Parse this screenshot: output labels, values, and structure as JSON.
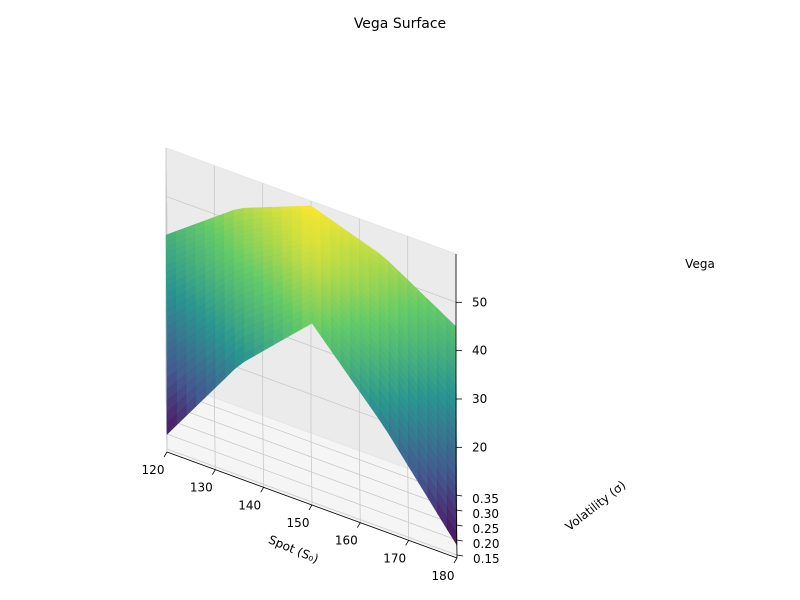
{
  "chart_data": {
    "type": "surface",
    "title": "Vega Surface",
    "xlabel": "Spot (S₀)",
    "ylabel": "Volatility (σ)",
    "zlabel": "Vega",
    "x_ticks": [
      "120",
      "130",
      "140",
      "150",
      "160",
      "170",
      "180"
    ],
    "y_ticks": [
      "0.15",
      "0.20",
      "0.25",
      "0.30",
      "0.35"
    ],
    "z_ticks": [
      "20",
      "30",
      "40",
      "50"
    ],
    "xlim": [
      120,
      180
    ],
    "ylim": [
      0.14,
      0.38
    ],
    "zlim": [
      12,
      60
    ],
    "colormap": "viridis",
    "surface_samples": {
      "spot": [
        120,
        135,
        150,
        165,
        180
      ],
      "volatility": [
        0.15,
        0.2,
        0.25,
        0.3,
        0.35,
        0.38
      ],
      "vega_by_volatility": [
        [
          15,
          35,
          49,
          33,
          14
        ],
        [
          24,
          41,
          52,
          41,
          23
        ],
        [
          30,
          45,
          55,
          46,
          30
        ],
        [
          36,
          49,
          57,
          50,
          37
        ],
        [
          40,
          51,
          58,
          52,
          42
        ],
        [
          42,
          53,
          59,
          54,
          45
        ]
      ]
    }
  }
}
